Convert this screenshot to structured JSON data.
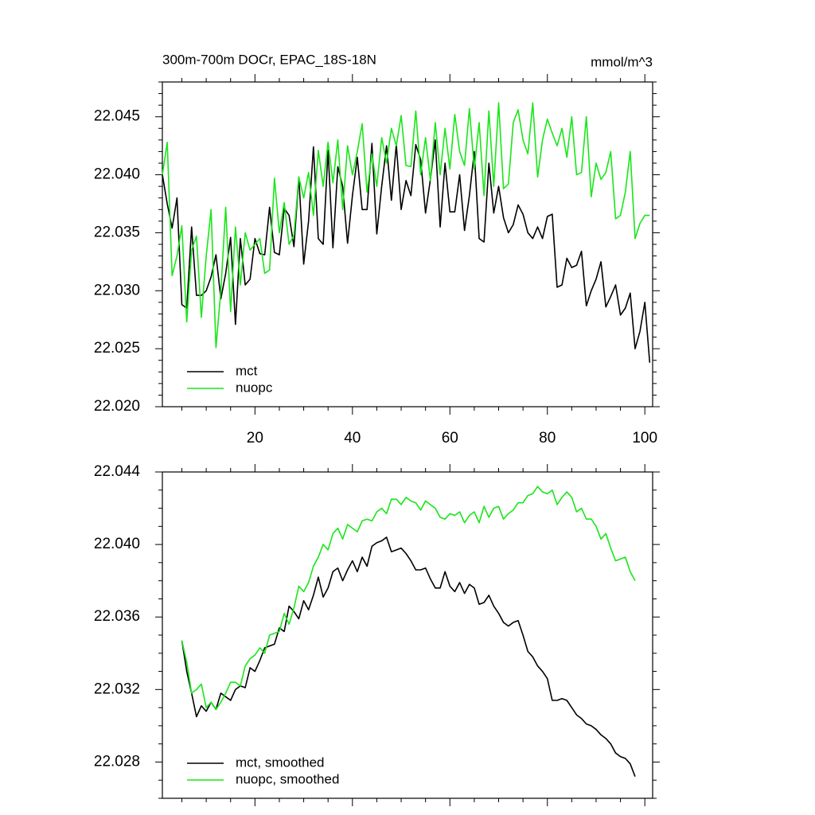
{
  "chart_data": [
    {
      "type": "line",
      "title": "300m-700m DOCr, EPAC_18S-18N",
      "units": "mmol/m^3",
      "x": [
        1,
        2,
        3,
        4,
        5,
        6,
        7,
        8,
        9,
        10,
        11,
        12,
        13,
        14,
        15,
        16,
        17,
        18,
        19,
        20,
        21,
        22,
        23,
        24,
        25,
        26,
        27,
        28,
        29,
        30,
        31,
        32,
        33,
        34,
        35,
        36,
        37,
        38,
        39,
        40,
        41,
        42,
        43,
        44,
        45,
        46,
        47,
        48,
        49,
        50,
        51,
        52,
        53,
        54,
        55,
        56,
        57,
        58,
        59,
        60,
        61,
        62,
        63,
        64,
        65,
        66,
        67,
        68,
        69,
        70,
        71,
        72,
        73,
        74,
        75,
        76,
        77,
        78,
        79,
        80,
        81,
        82,
        83,
        84,
        85,
        86,
        87,
        88,
        89,
        90,
        91,
        92,
        93,
        94,
        95,
        96,
        97,
        98,
        99,
        100,
        101
      ],
      "xlim": [
        1,
        101.6
      ],
      "xticks": [
        20,
        40,
        60,
        80,
        100
      ],
      "xtick_labels": true,
      "ylim": [
        22.02,
        22.048
      ],
      "yticks": [
        {
          "value": 22.02,
          "label": "22.020"
        },
        22.025,
        {
          "value": 22.03,
          "label": "22.030"
        },
        22.035,
        {
          "value": 22.04,
          "label": "22.040"
        },
        22.045
      ],
      "legend": "lower left",
      "series": [
        {
          "name": "mct",
          "color": "#000000",
          "values": [
            22.04,
            22.0375,
            22.0354,
            22.038,
            22.0288,
            22.0285,
            22.0355,
            22.0296,
            22.0296,
            22.03,
            22.0312,
            22.0331,
            22.0293,
            22.0315,
            22.0346,
            22.0271,
            22.0345,
            22.0305,
            22.031,
            22.0345,
            22.0332,
            22.0331,
            22.0372,
            22.0333,
            22.0331,
            22.0371,
            22.0365,
            22.0338,
            22.0398,
            22.0323,
            22.036,
            22.0424,
            22.0345,
            22.034,
            22.0421,
            22.0337,
            22.0407,
            22.039,
            22.0341,
            22.0382,
            22.0415,
            22.037,
            22.037,
            22.0427,
            22.0349,
            22.039,
            22.0425,
            22.0378,
            22.0426,
            22.037,
            22.0395,
            22.0382,
            22.0426,
            22.0413,
            22.0367,
            22.0396,
            22.043,
            22.0355,
            22.041,
            22.0368,
            22.0368,
            22.04,
            22.0352,
            22.0382,
            22.042,
            22.0345,
            22.0342,
            22.041,
            22.0367,
            22.039,
            22.0363,
            22.035,
            22.0357,
            22.0374,
            22.0366,
            22.035,
            22.0345,
            22.0355,
            22.0345,
            22.0364,
            22.0366,
            22.0303,
            22.0305,
            22.0328,
            22.032,
            22.0322,
            22.0334,
            22.0287,
            22.03,
            22.031,
            22.0325,
            22.0286,
            22.0295,
            22.0305,
            22.0279,
            22.0285,
            22.0298,
            22.025,
            22.0265,
            22.029,
            22.0238
          ]
        },
        {
          "name": "nuopc",
          "color": "#19e619",
          "values": [
            22.04,
            22.0428,
            22.0313,
            22.033,
            22.0356,
            22.0273,
            22.0335,
            22.0347,
            22.0277,
            22.033,
            22.037,
            22.0251,
            22.03,
            22.0372,
            22.0282,
            22.0355,
            22.0305,
            22.035,
            22.0335,
            22.034,
            22.0345,
            22.0315,
            22.0318,
            22.0397,
            22.035,
            22.0376,
            22.034,
            22.0348,
            22.0398,
            22.038,
            22.0402,
            22.0365,
            22.0421,
            22.039,
            22.0428,
            22.0393,
            22.043,
            22.037,
            22.0425,
            22.04,
            22.042,
            22.0444,
            22.0385,
            22.0418,
            22.039,
            22.0432,
            22.041,
            22.044,
            22.0425,
            22.0451,
            22.0408,
            22.0407,
            22.0455,
            22.04,
            22.0432,
            22.0395,
            22.0445,
            22.04,
            22.044,
            22.0405,
            22.0452,
            22.042,
            22.0408,
            22.0457,
            22.0405,
            22.0445,
            22.0382,
            22.0455,
            22.039,
            22.0462,
            22.0388,
            22.0392,
            22.0445,
            22.0456,
            22.043,
            22.0418,
            22.0462,
            22.0398,
            22.043,
            22.0448,
            22.0436,
            22.0425,
            22.044,
            22.0415,
            22.045,
            22.04,
            22.0402,
            22.045,
            22.0381,
            22.041,
            22.0396,
            22.0402,
            22.042,
            22.0362,
            22.0365,
            22.0385,
            22.042,
            22.0345,
            22.0358,
            22.0365,
            22.0365
          ]
        }
      ]
    },
    {
      "type": "line",
      "x": [
        5,
        6,
        7,
        8,
        9,
        10,
        11,
        12,
        13,
        14,
        15,
        16,
        17,
        18,
        19,
        20,
        21,
        22,
        23,
        24,
        25,
        26,
        27,
        28,
        29,
        30,
        31,
        32,
        33,
        34,
        35,
        36,
        37,
        38,
        39,
        40,
        41,
        42,
        43,
        44,
        45,
        46,
        47,
        48,
        49,
        50,
        51,
        52,
        53,
        54,
        55,
        56,
        57,
        58,
        59,
        60,
        61,
        62,
        63,
        64,
        65,
        66,
        67,
        68,
        69,
        70,
        71,
        72,
        73,
        74,
        75,
        76,
        77,
        78,
        79,
        80,
        81,
        82,
        83,
        84,
        85,
        86,
        87,
        88,
        89,
        90,
        91,
        92,
        93,
        94,
        95,
        96,
        97,
        98
      ],
      "xlim": [
        1,
        101.6
      ],
      "xticks": [
        20,
        40,
        60,
        80,
        100
      ],
      "xtick_labels": false,
      "ylim": [
        22.026,
        22.044
      ],
      "yticks": [
        22.028,
        22.032,
        22.036,
        {
          "value": 22.04,
          "label": "22.040"
        },
        22.044
      ],
      "legend": "lower left",
      "series": [
        {
          "name": "mct, smoothed",
          "color": "#000000",
          "values": [
            22.0347,
            22.033,
            22.0318,
            22.0305,
            22.0311,
            22.0308,
            22.0313,
            22.0309,
            22.0318,
            22.0316,
            22.0314,
            22.032,
            22.0322,
            22.0321,
            22.0332,
            22.033,
            22.0336,
            22.0343,
            22.0344,
            22.0345,
            22.0354,
            22.0352,
            22.0366,
            22.0363,
            22.0359,
            22.0369,
            22.0364,
            22.0372,
            22.0382,
            22.0371,
            22.0376,
            22.0385,
            22.0387,
            22.038,
            22.0386,
            22.0391,
            22.0385,
            22.0393,
            22.0388,
            22.0399,
            22.0401,
            22.0402,
            22.0404,
            22.0396,
            22.0397,
            22.0398,
            22.0395,
            22.0391,
            22.0386,
            22.0386,
            22.0387,
            22.0381,
            22.0376,
            22.0376,
            22.0385,
            22.0377,
            22.0374,
            22.0379,
            22.0373,
            22.0378,
            22.0376,
            22.0367,
            22.0368,
            22.0372,
            22.0366,
            22.0362,
            22.0357,
            22.0355,
            22.0357,
            22.0358,
            22.035,
            22.0341,
            22.0338,
            22.0333,
            22.033,
            22.0326,
            22.0314,
            22.0314,
            22.0315,
            22.0314,
            22.031,
            22.0306,
            22.0304,
            22.0301,
            22.03,
            22.0298,
            22.0295,
            22.0293,
            22.029,
            22.0285,
            22.0283,
            22.0282,
            22.0279,
            22.0272
          ]
        },
        {
          "name": "nuopc, smoothed",
          "color": "#19e619",
          "values": [
            22.0347,
            22.0335,
            22.0318,
            22.032,
            22.0323,
            22.031,
            22.0313,
            22.0309,
            22.0313,
            22.0318,
            22.0324,
            22.0324,
            22.0322,
            22.0333,
            22.0337,
            22.0339,
            22.0343,
            22.034,
            22.035,
            22.0351,
            22.0352,
            22.0362,
            22.0356,
            22.0365,
            22.0377,
            22.0374,
            22.0379,
            22.0388,
            22.0393,
            22.04,
            22.0397,
            22.0406,
            22.0409,
            22.0403,
            22.0411,
            22.0409,
            22.0407,
            22.0413,
            22.0414,
            22.0413,
            22.0418,
            22.042,
            22.0417,
            22.0425,
            22.0425,
            22.0422,
            22.0426,
            22.0424,
            22.0423,
            22.0419,
            22.0424,
            22.0422,
            22.042,
            22.0415,
            22.0414,
            22.0417,
            22.0416,
            22.0418,
            22.0412,
            22.0416,
            22.0418,
            22.0412,
            22.0421,
            22.0415,
            22.042,
            22.0421,
            22.0414,
            22.0417,
            22.0419,
            22.0423,
            22.0423,
            22.0427,
            22.0428,
            22.0432,
            22.0429,
            22.0428,
            22.043,
            22.0422,
            22.0426,
            22.0429,
            22.0426,
            22.0418,
            22.042,
            22.0414,
            22.0414,
            22.041,
            22.0403,
            22.0406,
            22.0398,
            22.0391,
            22.0392,
            22.0393,
            22.0385,
            22.038
          ]
        }
      ]
    }
  ]
}
